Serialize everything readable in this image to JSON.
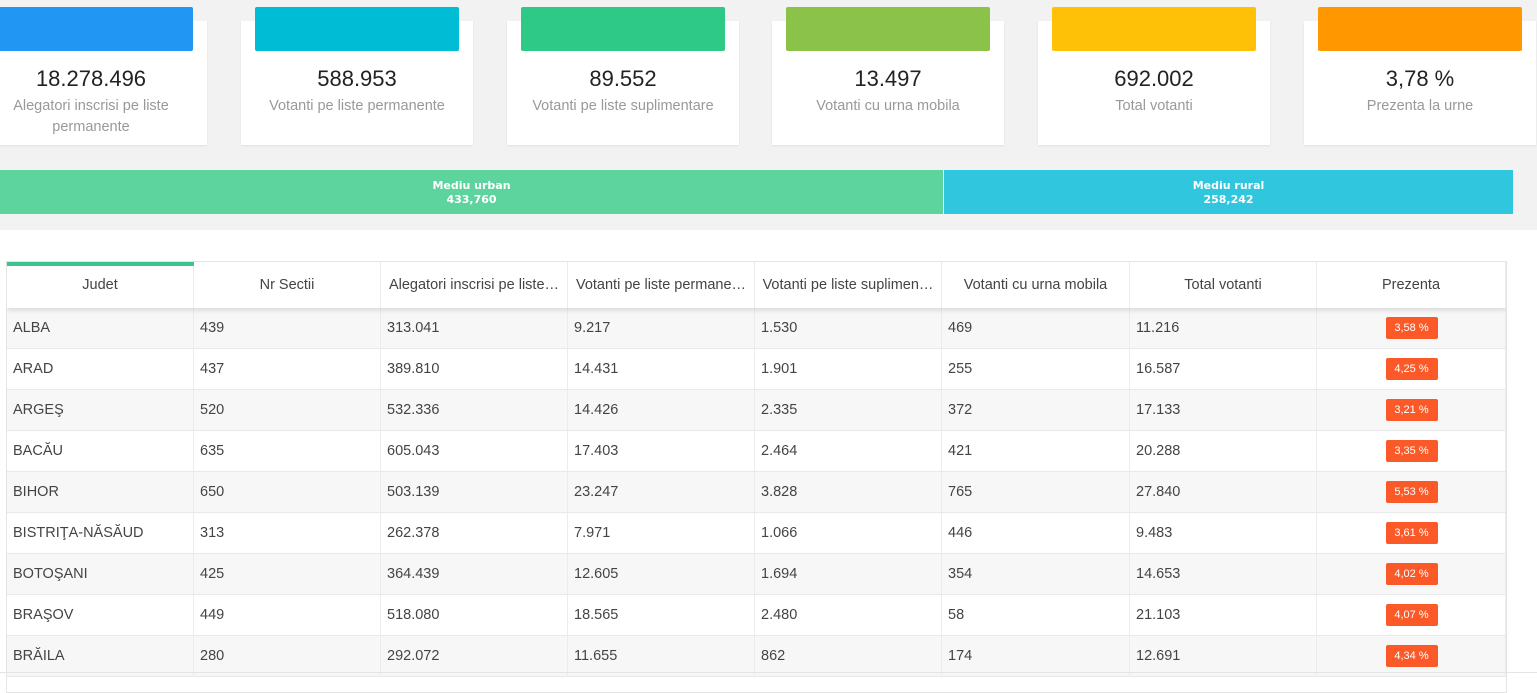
{
  "stats": [
    {
      "value": "18.278.496",
      "label": "Alegatori inscrisi pe liste permanente",
      "color": "#2196f3"
    },
    {
      "value": "588.953",
      "label": "Votanti pe liste permanente",
      "color": "#00bcd4"
    },
    {
      "value": "89.552",
      "label": "Votanti pe liste suplimentare",
      "color": "#2ec986"
    },
    {
      "value": "13.497",
      "label": "Votanti cu urna mobila",
      "color": "#8bc34a"
    },
    {
      "value": "692.002",
      "label": "Total votanti",
      "color": "#ffc107"
    },
    {
      "value": "3,78 %",
      "label": "Prezenta la urne",
      "color": "#ff9800"
    }
  ],
  "environment": {
    "urban": {
      "label": "Mediu urban",
      "value": "433,760",
      "color": "#5dd39e"
    },
    "rural": {
      "label": "Mediu rural",
      "value": "258,242",
      "color": "#30c6dd"
    }
  },
  "table": {
    "columns": [
      "Judet",
      "Nr Sectii",
      "Alegatori inscrisi pe liste…",
      "Votanti pe liste permane…",
      "Votanti pe liste suplimen…",
      "Votanti cu urna mobila",
      "Total votanti",
      "Prezenta"
    ],
    "rows": [
      [
        "ALBA",
        "439",
        "313.041",
        "9.217",
        "1.530",
        "469",
        "11.216",
        "3,58 %"
      ],
      [
        "ARAD",
        "437",
        "389.810",
        "14.431",
        "1.901",
        "255",
        "16.587",
        "4,25 %"
      ],
      [
        "ARGEŞ",
        "520",
        "532.336",
        "14.426",
        "2.335",
        "372",
        "17.133",
        "3,21 %"
      ],
      [
        "BACĂU",
        "635",
        "605.043",
        "17.403",
        "2.464",
        "421",
        "20.288",
        "3,35 %"
      ],
      [
        "BIHOR",
        "650",
        "503.139",
        "23.247",
        "3.828",
        "765",
        "27.840",
        "5,53 %"
      ],
      [
        "BISTRIŢA-NĂSĂUD",
        "313",
        "262.378",
        "7.971",
        "1.066",
        "446",
        "9.483",
        "3,61 %"
      ],
      [
        "BOTOŞANI",
        "425",
        "364.439",
        "12.605",
        "1.694",
        "354",
        "14.653",
        "4,02 %"
      ],
      [
        "BRAŞOV",
        "449",
        "518.080",
        "18.565",
        "2.480",
        "58",
        "21.103",
        "4,07 %"
      ],
      [
        "BRĂILA",
        "280",
        "292.072",
        "11.655",
        "862",
        "174",
        "12.691",
        "4,34 %"
      ]
    ]
  }
}
